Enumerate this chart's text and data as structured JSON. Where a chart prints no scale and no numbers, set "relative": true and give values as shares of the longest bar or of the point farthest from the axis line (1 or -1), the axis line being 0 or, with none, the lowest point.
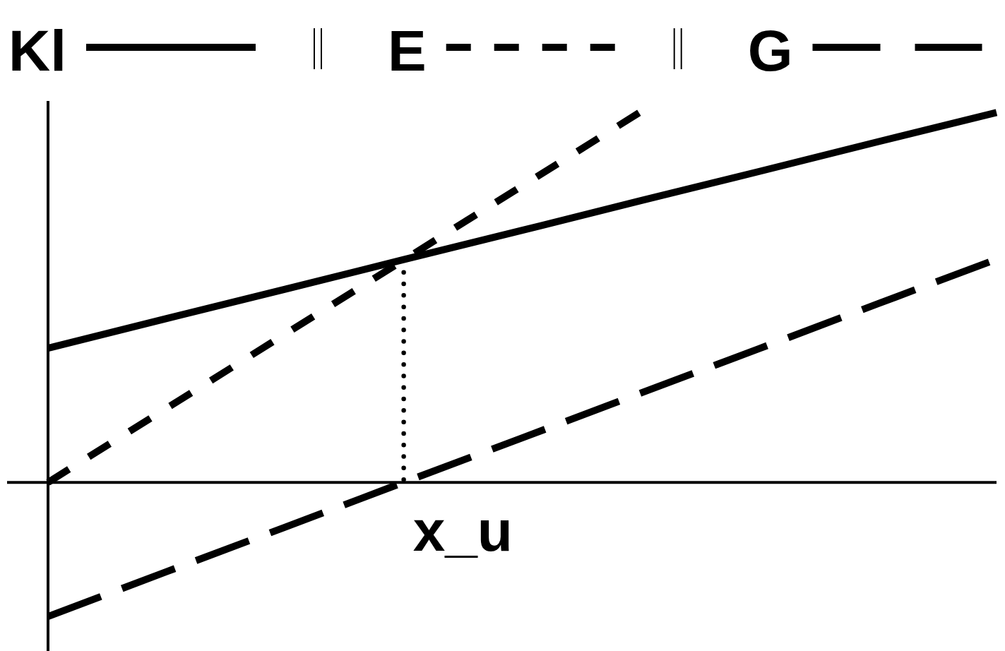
{
  "chart_data": {
    "type": "line",
    "relative": true,
    "categories": [
      null,
      null,
      null,
      null,
      null,
      null,
      null,
      null,
      null
    ],
    "series": [
      {
        "name": "Kl",
        "color": "#000000",
        "line_style": "solid",
        "values": [
          0.362,
          0.442,
          0.521,
          0.601,
          0.68,
          0.76,
          0.839,
          0.919,
          0.998
        ]
      },
      {
        "name": "E",
        "color": "#000000",
        "line_style": "dashed",
        "values": [
          0,
          0.2,
          0.4,
          0.6,
          0.8,
          1,
          null,
          null,
          null
        ]
      },
      {
        "name": "G",
        "color": "#000000",
        "line_style": "dashed",
        "values": [
          -0.362,
          -0.241,
          -0.121,
          0,
          0.12,
          0.241,
          0.361,
          0.482,
          0.602
        ]
      }
    ],
    "annotations": [
      "x_u"
    ],
    "legend": "top"
  }
}
